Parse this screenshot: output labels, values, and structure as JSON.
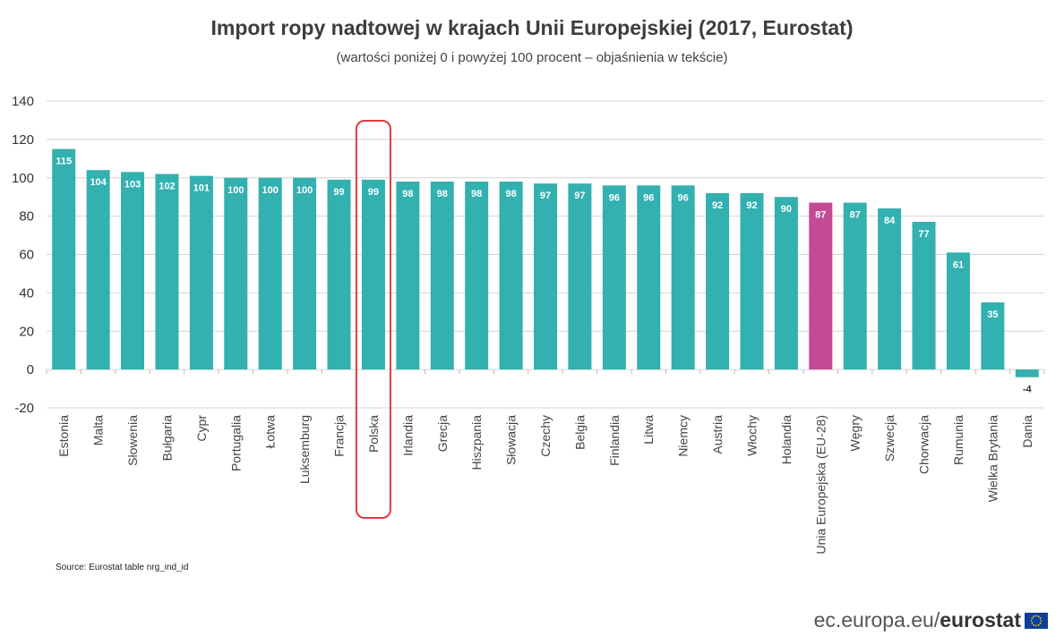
{
  "chart_data": {
    "type": "bar",
    "title": "Import ropy nadtowej w krajach Unii Europejskiej (2017, Eurostat)",
    "subtitle": "(wartości poniżej 0 i powyżej 100 procent – objaśnienia w tekście)",
    "categories": [
      "Estonia",
      "Malta",
      "Słowenia",
      "Bułgaria",
      "Cypr",
      "Portugalia",
      "Łotwa",
      "Luksemburg",
      "Francja",
      "Polska",
      "Irlandia",
      "Grecja",
      "Hiszpania",
      "Słowacja",
      "Czechy",
      "Belgia",
      "Finlandia",
      "Litwa",
      "Niemcy",
      "Austria",
      "Włochy",
      "Holandia",
      "Unia Europejska (EU-28)",
      "Węgry",
      "Szwecja",
      "Chorwacja",
      "Rumunia",
      "Wielka Brytania",
      "Dania"
    ],
    "values": [
      115,
      104,
      103,
      102,
      101,
      100,
      100,
      100,
      99,
      99,
      98,
      98,
      98,
      98,
      97,
      97,
      96,
      96,
      96,
      92,
      92,
      90,
      87,
      87,
      84,
      77,
      61,
      35,
      -4
    ],
    "ylim": [
      -20,
      140
    ],
    "yticks": [
      -20,
      0,
      20,
      40,
      60,
      80,
      100,
      120,
      140
    ],
    "grid": true,
    "legend": "none",
    "colors": {
      "default": "#33b0b0",
      "highlight": "#c34b93",
      "grid": "#d4d4d4",
      "outline": "#e03c3c"
    },
    "highlight_category": "Unia Europejska (EU-28)",
    "outlined_category": "Polska"
  },
  "footer": {
    "source": "Source: Eurostat table  nrg_ind_id",
    "brand_prefix": "ec.europa.eu/",
    "brand_name": "eurostat"
  }
}
